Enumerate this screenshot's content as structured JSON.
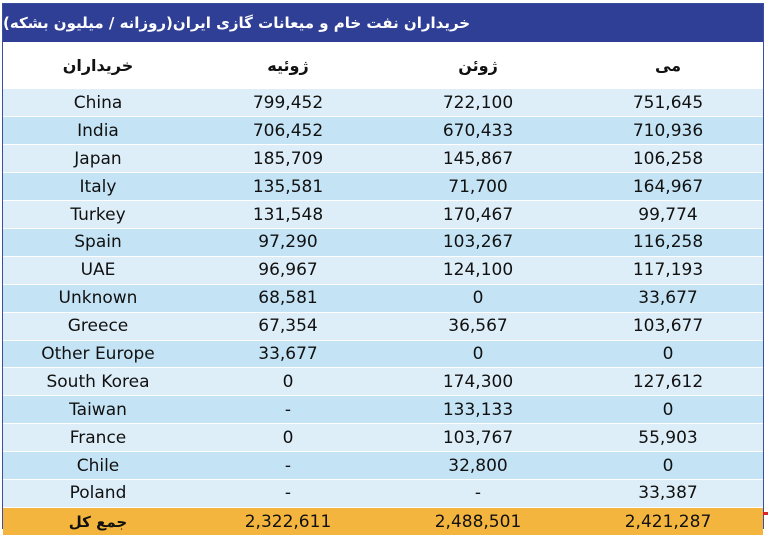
{
  "title": "خریداران نفت خام و میعانات گازی ایران(روزانه / میلیون بشکه)",
  "headers": {
    "buyers": "خریداران",
    "july": "ژوئیه",
    "june": "ژوئن",
    "may": "می"
  },
  "rows": [
    {
      "buyer": "China",
      "july": "799,452",
      "june": "722,100",
      "may": "751,645"
    },
    {
      "buyer": "India",
      "july": "706,452",
      "june": "670,433",
      "may": "710,936"
    },
    {
      "buyer": "Japan",
      "july": "185,709",
      "june": "145,867",
      "may": "106,258"
    },
    {
      "buyer": "Italy",
      "july": "135,581",
      "june": "71,700",
      "may": "164,967"
    },
    {
      "buyer": "Turkey",
      "july": "131,548",
      "june": "170,467",
      "may": "99,774"
    },
    {
      "buyer": "Spain",
      "july": "97,290",
      "june": "103,267",
      "may": "116,258"
    },
    {
      "buyer": "UAE",
      "july": "96,967",
      "june": "124,100",
      "may": "117,193"
    },
    {
      "buyer": "Unknown",
      "july": "68,581",
      "june": "0",
      "may": "33,677"
    },
    {
      "buyer": "Greece",
      "july": "67,354",
      "june": "36,567",
      "may": "103,677"
    },
    {
      "buyer": "Other Europe",
      "july": "33,677",
      "june": "0",
      "may": "0"
    },
    {
      "buyer": "South Korea",
      "july": "0",
      "june": "174,300",
      "may": "127,612"
    },
    {
      "buyer": "Taiwan",
      "july": "-",
      "june": "133,133",
      "may": "0"
    },
    {
      "buyer": "France",
      "july": "0",
      "june": "103,767",
      "may": "55,903"
    },
    {
      "buyer": "Chile",
      "july": "-",
      "june": "32,800",
      "may": "0"
    },
    {
      "buyer": "Poland",
      "july": "-",
      "june": "-",
      "may": "33,387"
    }
  ],
  "total": {
    "label": "جمع کل",
    "july": "2,322,611",
    "june": "2,488,501",
    "may": "2,421,287"
  },
  "colors": {
    "title_bg": "#2f3f95",
    "row_light": "#ddeef8",
    "row_dark": "#c4e3f5",
    "total_bg": "#f3b53d"
  }
}
